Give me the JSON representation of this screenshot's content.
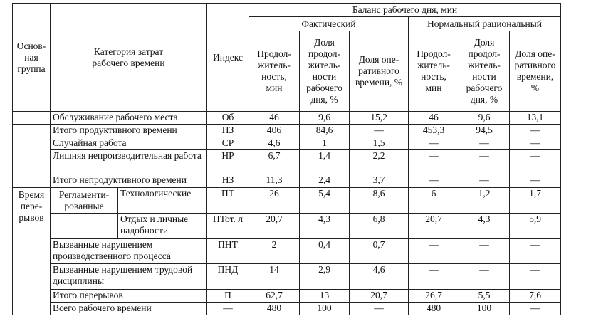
{
  "header": {
    "group": "Основ-\nная\nгруппа",
    "category": "Категория затрат\nрабочего времени",
    "index": "Индекс",
    "balance": "Баланс рабочего дня, мин",
    "actual": "Фактический",
    "normal": "Нормальный рациональный",
    "actual_cols": [
      "Продол-\nжитель-\nность,\nмин",
      "Доля\nпродол-\nжитель-\nности\nрабочего\nдня, %",
      "Доля опе-\nративного\nвремени, %"
    ],
    "normal_cols": [
      "Продол-\nжитель-\nность,\nмин",
      "Доля\nпродол-\nжитель-\nности\nрабочего\nдня, %",
      "Доля опе-\nративного\nвремени,\n%"
    ]
  },
  "groups": {
    "breaks": "Время\nпере-\nрывов",
    "regulated": "Регламенти-\nрованные"
  },
  "rows": [
    {
      "category": "Обслуживание рабочего места",
      "index": "Об",
      "values": [
        "46",
        "9,6",
        "15,2",
        "46",
        "9,6",
        "13,1"
      ]
    },
    {
      "category": "Итого продуктивного времени",
      "index": "ПЗ",
      "values": [
        "406",
        "84,6",
        "—",
        "453,3",
        "94,5",
        "—"
      ]
    },
    {
      "category": "Случайная работа",
      "index": "СР",
      "values": [
        "4,6",
        "1",
        "1,5",
        "—",
        "—",
        "—"
      ]
    },
    {
      "category": "Лишняя непроизводительная работа",
      "index": "НР",
      "values": [
        "6,7",
        "1,4",
        "2,2",
        "—",
        "—",
        "—"
      ]
    },
    {
      "category": "Итого непродуктивного времени",
      "index": "НЗ",
      "values": [
        "11,3",
        "2,4",
        "3,7",
        "—",
        "—",
        "—"
      ]
    },
    {
      "category": "Технологические",
      "index": "ПТ",
      "values": [
        "26",
        "5,4",
        "8,6",
        "6",
        "1,2",
        "1,7"
      ]
    },
    {
      "category": "Отдых и личные надобности",
      "index": "ПТот. л",
      "values": [
        "20,7",
        "4,3",
        "6,8",
        "20,7",
        "4,3",
        "5,9"
      ]
    },
    {
      "category": "Вызванные нарушением производственного процесса",
      "index": "ПНТ",
      "values": [
        "2",
        "0,4",
        "0,7",
        "—",
        "—",
        "—"
      ]
    },
    {
      "category": "Вызванные нарушением трудовой дисциплины",
      "index": "ПНД",
      "values": [
        "14",
        "2,9",
        "4,6",
        "—",
        "—",
        "—"
      ]
    },
    {
      "category": "Итого перерывов",
      "index": "П",
      "values": [
        "62,7",
        "13",
        "20,7",
        "26,7",
        "5,5",
        "7,6"
      ]
    },
    {
      "category": "Всего рабочего времени",
      "index": "—",
      "values": [
        "480",
        "100",
        "—",
        "480",
        "100",
        "—"
      ]
    }
  ]
}
